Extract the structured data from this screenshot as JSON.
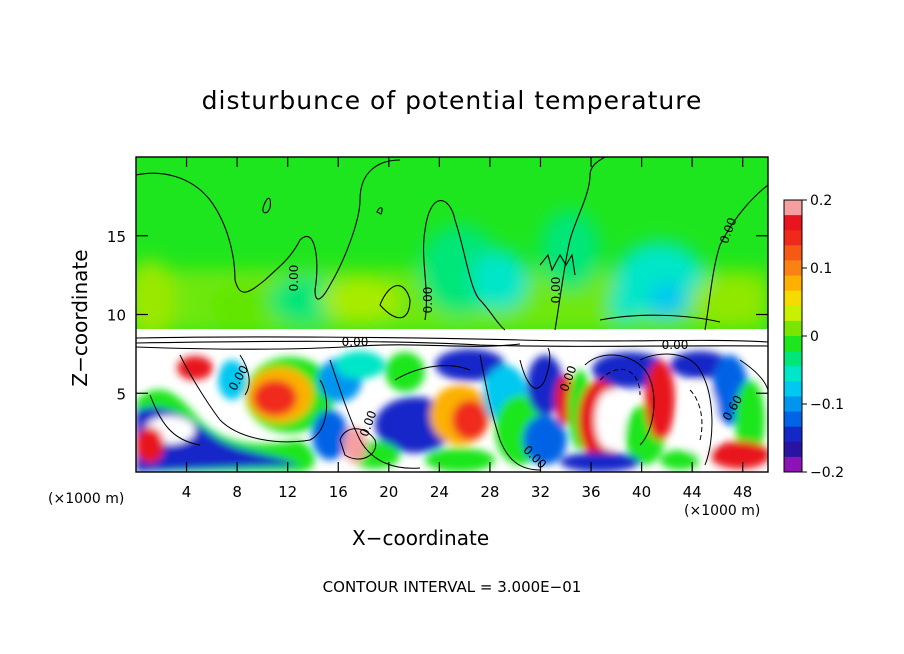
{
  "chart_data": {
    "type": "heatmap",
    "title": "disturbunce of potential temperature",
    "xlabel": "X−coordinate",
    "ylabel": "Z−coordinate",
    "x_unit": "(×1000 m)",
    "x_tick_labels": [
      "4",
      "8",
      "12",
      "16",
      "20",
      "24",
      "28",
      "32",
      "36",
      "40",
      "44",
      "48"
    ],
    "x_ticks": [
      4,
      8,
      12,
      16,
      20,
      24,
      28,
      32,
      36,
      40,
      44,
      48
    ],
    "xlim": [
      0,
      50
    ],
    "y_tick_labels": [
      "5",
      "10",
      "15"
    ],
    "y_ticks": [
      5,
      10,
      15
    ],
    "ylim": [
      0,
      20
    ],
    "colorbar": {
      "range": [
        -0.2,
        0.2
      ],
      "tick_values": [
        0.2,
        0.1,
        0,
        -0.1,
        -0.2
      ],
      "tick_labels": [
        "0.2",
        "0.1",
        "0",
        "−0.1",
        "−0.2"
      ],
      "colors": [
        "#f4a0a0",
        "#e8141e",
        "#f02a1a",
        "#f55a14",
        "#fa8214",
        "#fcb000",
        "#f5dc00",
        "#c8f000",
        "#78e600",
        "#1ee61e",
        "#00e678",
        "#00e6c8",
        "#00c8f0",
        "#0096f0",
        "#0064e6",
        "#1428c8",
        "#2814a0",
        "#8c14b4"
      ]
    },
    "contour_labels": [
      "0.00",
      "0.00",
      "0.00",
      "0.00",
      "0.00",
      "0.00",
      "0.00",
      "0.00",
      "0.60",
      "0.00",
      "0.00"
    ],
    "footer": "CONTOUR INTERVAL = 3.000E−01"
  }
}
